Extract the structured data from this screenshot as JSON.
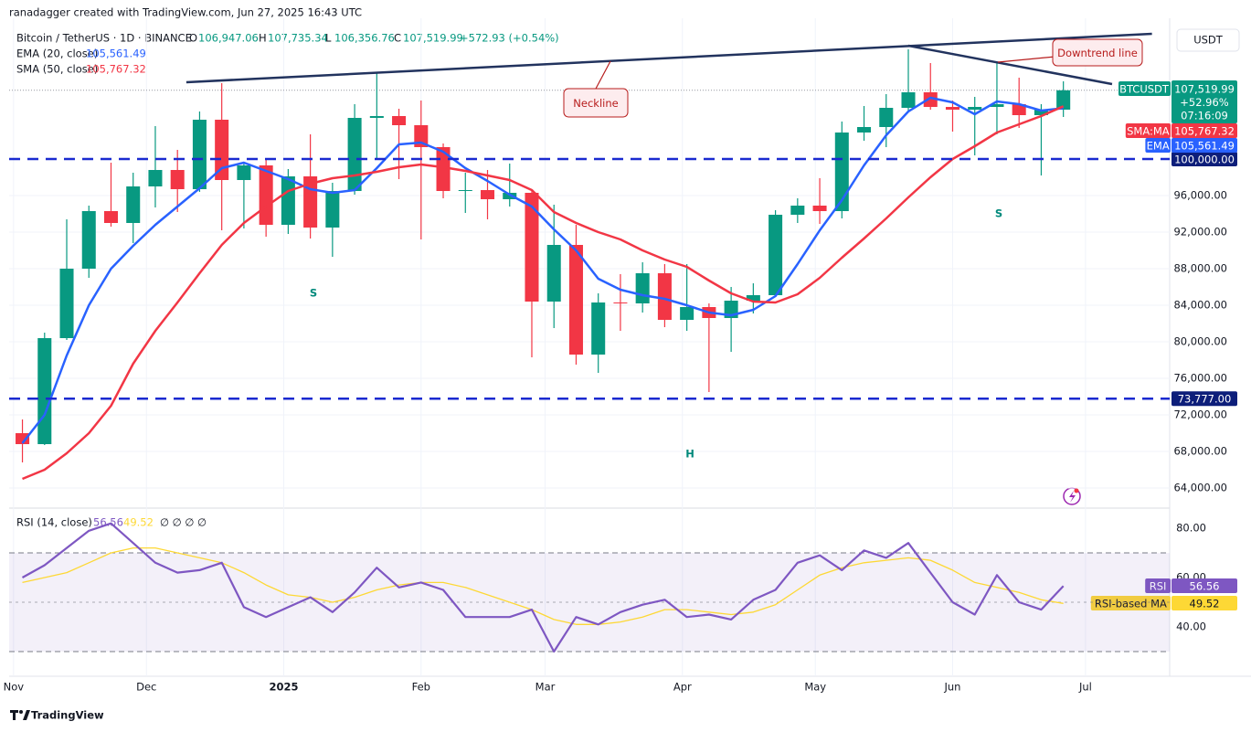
{
  "header": {
    "creator": "ranadagger created with TradingView.com, Jun 27, 2025 16:43 UTC",
    "symbol": "Bitcoin / TetherUS · 1D · BINANCE",
    "ohlc": [
      {
        "label": "O",
        "value": "106,947.06"
      },
      {
        "label": "H",
        "value": "107,735.34"
      },
      {
        "label": "L",
        "value": "106,356.76"
      },
      {
        "label": "C",
        "value": "107,519.99"
      }
    ],
    "change": "+572.93 (+0.54%)",
    "unit": "USDT",
    "brand": "TradingView"
  },
  "chart_data": {
    "type": "candlestick",
    "x": [
      "2024-11-03",
      "2024-11-08",
      "2024-11-13",
      "2024-11-18",
      "2024-11-23",
      "2024-11-28",
      "2024-12-03",
      "2024-12-08",
      "2024-12-13",
      "2024-12-18",
      "2024-12-23",
      "2024-12-28",
      "2025-01-02",
      "2025-01-07",
      "2025-01-12",
      "2025-01-17",
      "2025-01-22",
      "2025-01-27",
      "2025-02-01",
      "2025-02-06",
      "2025-02-11",
      "2025-02-16",
      "2025-02-21",
      "2025-02-26",
      "2025-03-03",
      "2025-03-08",
      "2025-03-13",
      "2025-03-18",
      "2025-03-23",
      "2025-03-28",
      "2025-04-02",
      "2025-04-07",
      "2025-04-12",
      "2025-04-17",
      "2025-04-22",
      "2025-04-27",
      "2025-05-02",
      "2025-05-07",
      "2025-05-12",
      "2025-05-17",
      "2025-05-22",
      "2025-05-27",
      "2025-06-01",
      "2025-06-06",
      "2025-06-11",
      "2025-06-16",
      "2025-06-21",
      "2025-06-26"
    ],
    "open": [
      70000,
      68800,
      80400,
      88000,
      94300,
      93000,
      97000,
      98800,
      96700,
      104300,
      97700,
      99300,
      92800,
      98100,
      92500,
      96500,
      104500,
      104700,
      103700,
      101300,
      96500,
      96600,
      95600,
      96300,
      84400,
      90600,
      78600,
      84300,
      84200,
      87500,
      82400,
      83800,
      82600,
      84500,
      85100,
      93900,
      94900,
      94300,
      102900,
      103500,
      105600,
      107300,
      105700,
      105400,
      105700,
      106000,
      104800,
      105400
    ],
    "high": [
      71500,
      81000,
      93400,
      94900,
      99600,
      98500,
      103600,
      101000,
      105200,
      108300,
      99500,
      99900,
      98900,
      102700,
      97400,
      106000,
      109500,
      105500,
      106400,
      101700,
      98500,
      98800,
      99500,
      96500,
      95000,
      92800,
      85300,
      87400,
      88700,
      88500,
      88500,
      84200,
      86000,
      86400,
      94400,
      95700,
      97900,
      104100,
      105800,
      107100,
      112000,
      110500,
      106400,
      106800,
      110500,
      108900,
      106000,
      108500
    ],
    "low": [
      66800,
      68700,
      80200,
      87000,
      92600,
      90800,
      94700,
      94200,
      96400,
      92200,
      92400,
      91500,
      91800,
      91300,
      89300,
      96100,
      100100,
      97800,
      91200,
      95700,
      94100,
      93400,
      94800,
      78300,
      81500,
      77500,
      76600,
      81200,
      83200,
      81600,
      81200,
      74500,
      78900,
      83100,
      85000,
      93000,
      92900,
      93500,
      102000,
      101300,
      105300,
      105400,
      103000,
      100400,
      102700,
      103400,
      98200,
      104600
    ],
    "close": [
      68800,
      80400,
      88000,
      94300,
      93000,
      97000,
      98800,
      96700,
      104300,
      97700,
      99300,
      92800,
      98100,
      92500,
      96500,
      104500,
      104700,
      103700,
      101300,
      96500,
      96600,
      95600,
      96300,
      84400,
      90600,
      78600,
      84300,
      84200,
      87500,
      82400,
      83800,
      82600,
      84500,
      85100,
      93900,
      94900,
      94300,
      102900,
      103500,
      105600,
      107300,
      105700,
      105400,
      105700,
      106000,
      104800,
      105400,
      107519.99
    ],
    "up_color": "#089981",
    "down_color": "#f23645",
    "last": {
      "name": "BTCUSDT",
      "label": "107,519.99",
      "change": "+52.96%",
      "countdown": "07:16:09",
      "color": "#089981"
    },
    "series": [
      {
        "name": "EMA",
        "legend": "EMA (20, close)",
        "color": "#2962ff",
        "last_label": "105,561.49",
        "values": [
          68900,
          72000,
          78500,
          84000,
          88000,
          90500,
          92800,
          94800,
          96800,
          99000,
          99600,
          98700,
          97800,
          96700,
          96300,
          96600,
          99000,
          101600,
          101800,
          100800,
          99000,
          97600,
          96100,
          94800,
          92300,
          90000,
          86900,
          85700,
          85100,
          84700,
          84000,
          83200,
          82900,
          83500,
          85000,
          88500,
          92200,
          95500,
          99300,
          102600,
          105200,
          106700,
          106200,
          104900,
          106300,
          106000,
          105300,
          105561.49
        ]
      },
      {
        "name": "SMA:MA",
        "legend": "SMA (50, close)",
        "color": "#f23645",
        "last_label": "105,767.32",
        "values": [
          65000,
          66000,
          67800,
          70000,
          73000,
          77600,
          81200,
          84300,
          87500,
          90600,
          93000,
          94800,
          96500,
          97300,
          97900,
          98200,
          98600,
          99100,
          99400,
          99100,
          98700,
          98200,
          97700,
          96600,
          94200,
          93000,
          92000,
          91200,
          90000,
          89000,
          88200,
          86700,
          85300,
          84400,
          84300,
          85200,
          87000,
          89200,
          91300,
          93500,
          95800,
          98000,
          100000,
          101400,
          102900,
          103800,
          104700,
          105767.32
        ]
      }
    ],
    "levels": [
      {
        "value": 100000,
        "label": "100,000.00"
      },
      {
        "value": 73777,
        "label": "73,777.00"
      }
    ],
    "level_color": "#1a2ad0",
    "trendlines": [
      {
        "name": "Neckline",
        "x": [
          "2024-12-10",
          "2025-07-16"
        ],
        "y": [
          108400,
          113700
        ]
      },
      {
        "name": "Downtrend line",
        "x": [
          "2025-05-22",
          "2025-07-07"
        ],
        "y": [
          112400,
          108200
        ]
      }
    ],
    "trendline_color": "#22335e",
    "patterns": [
      "S",
      "H",
      "S"
    ],
    "xlim": [
      "2024-10-31",
      "2025-07-20"
    ],
    "xticks": [
      {
        "value": "2024-11-01",
        "label": "Nov"
      },
      {
        "value": "2024-12-01",
        "label": "Dec"
      },
      {
        "value": "2025-01-01",
        "label": "2025"
      },
      {
        "value": "2025-02-01",
        "label": "Feb"
      },
      {
        "value": "2025-03-01",
        "label": "Mar"
      },
      {
        "value": "2025-04-01",
        "label": "Apr"
      },
      {
        "value": "2025-05-01",
        "label": "May"
      },
      {
        "value": "2025-06-01",
        "label": "Jun"
      },
      {
        "value": "2025-07-01",
        "label": "Jul"
      }
    ],
    "ylim": [
      61900,
      115400
    ],
    "yticks": [
      {
        "value": 64000,
        "label": "64,000.00"
      },
      {
        "value": 68000,
        "label": "68,000.00"
      },
      {
        "value": 72000,
        "label": "72,000.00"
      },
      {
        "value": 76000,
        "label": "76,000.00"
      },
      {
        "value": 80000,
        "label": "80,000.00"
      },
      {
        "value": 84000,
        "label": "84,000.00"
      },
      {
        "value": 88000,
        "label": "88,000.00"
      },
      {
        "value": 92000,
        "label": "92,000.00"
      },
      {
        "value": 96000,
        "label": "96,000.00"
      }
    ],
    "grid": true,
    "rsi": {
      "title": "RSI (14, close)",
      "extra": "∅ ∅ ∅ ∅",
      "series": [
        {
          "name": "RSI",
          "color": "#7e57c2",
          "last_label": "56.56",
          "values": [
            60,
            65,
            72,
            79,
            82,
            74,
            66,
            62,
            63,
            66,
            48,
            44,
            48,
            52,
            46,
            54,
            64,
            56,
            58,
            55,
            44,
            44,
            44,
            47,
            30,
            44,
            41,
            46,
            49,
            51,
            44,
            45,
            43,
            51,
            55,
            66,
            69,
            63,
            71,
            68,
            74,
            62,
            50,
            45,
            61,
            50,
            47,
            56.56
          ]
        },
        {
          "name": "RSI-based MA",
          "color": "#fdd835",
          "last_label": "49.52",
          "values": [
            58,
            60,
            62,
            66,
            70,
            72,
            72,
            70,
            68,
            66,
            62,
            57,
            53,
            52,
            50,
            52,
            55,
            57,
            58,
            58,
            56,
            53,
            50,
            47,
            43,
            41,
            41,
            42,
            44,
            47,
            47,
            46,
            45,
            46,
            49,
            55,
            61,
            64,
            66,
            67,
            68,
            67,
            63,
            58,
            56,
            54,
            51,
            49.52
          ]
        }
      ],
      "band": [
        30,
        70
      ],
      "midline": 50,
      "ylim": [
        20,
        87.8
      ],
      "yticks": [
        {
          "value": 80,
          "label": "80.00"
        },
        {
          "value": 60,
          "label": "60.00"
        },
        {
          "value": 40,
          "label": "40.00"
        }
      ]
    }
  }
}
